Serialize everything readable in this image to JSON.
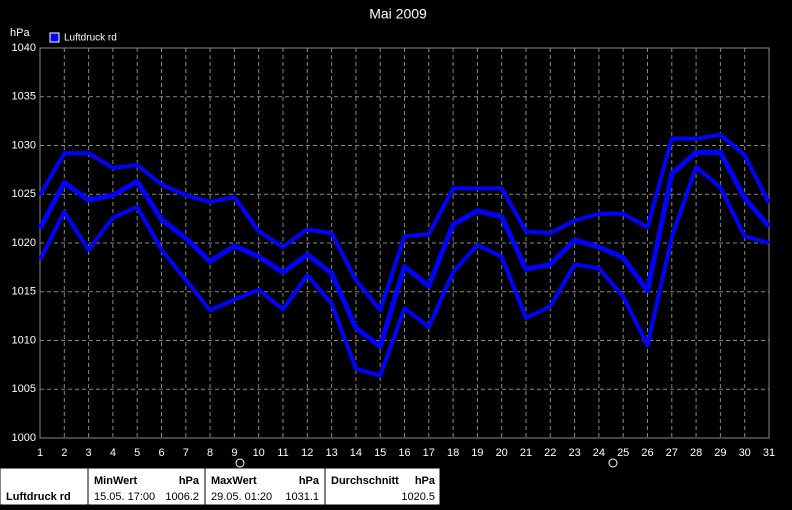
{
  "chart_data": {
    "type": "line",
    "title": "Mai 2009",
    "y_label": "hPa",
    "legend": "Luftdruck rd",
    "x": [
      1,
      2,
      3,
      4,
      5,
      6,
      7,
      8,
      9,
      10,
      11,
      12,
      13,
      14,
      15,
      16,
      17,
      18,
      19,
      20,
      21,
      22,
      23,
      24,
      25,
      26,
      27,
      28,
      29,
      30,
      31
    ],
    "xlim": [
      1,
      31
    ],
    "xticks": [
      1,
      2,
      3,
      4,
      5,
      6,
      7,
      8,
      9,
      10,
      11,
      12,
      13,
      14,
      15,
      16,
      17,
      18,
      19,
      20,
      21,
      22,
      23,
      24,
      25,
      26,
      27,
      28,
      29,
      30,
      31
    ],
    "ylim": [
      1000,
      1040
    ],
    "yticks": [
      1000,
      1005,
      1010,
      1015,
      1020,
      1025,
      1030,
      1035,
      1040
    ],
    "grid": true,
    "series": [
      {
        "color": "#0000ff",
        "values": [
          1024.9,
          1029.2,
          1029.2,
          1027.7,
          1028.0,
          1026.0,
          1024.9,
          1024.2,
          1024.7,
          1021.2,
          1019.6,
          1021.4,
          1021.0,
          1016.2,
          1013.1,
          1020.7,
          1020.9,
          1025.6,
          1025.6,
          1025.6,
          1021.2,
          1021.0,
          1022.3,
          1023.0,
          1023.0,
          1021.6,
          1030.7,
          1030.7,
          1031.1,
          1029.0,
          1024.1
        ]
      },
      {
        "color": "#0000ff",
        "values": [
          1021.5,
          1026.2,
          1024.4,
          1024.9,
          1026.3,
          1022.4,
          1020.5,
          1018.1,
          1019.7,
          1018.6,
          1017.0,
          1018.8,
          1016.9,
          1011.3,
          1009.4,
          1017.6,
          1015.6,
          1021.9,
          1023.3,
          1022.7,
          1017.3,
          1017.8,
          1020.3,
          1019.6,
          1018.5,
          1015.1,
          1027.1,
          1029.3,
          1029.3,
          1024.6,
          1021.7
        ]
      },
      {
        "color": "#0000ff",
        "values": [
          1018.3,
          1023.2,
          1019.3,
          1022.6,
          1023.7,
          1019.3,
          1016.2,
          1013.1,
          1014.2,
          1015.2,
          1013.2,
          1016.7,
          1013.8,
          1007.1,
          1006.4,
          1013.3,
          1011.4,
          1017.0,
          1019.8,
          1018.6,
          1012.3,
          1013.5,
          1017.8,
          1017.4,
          1014.5,
          1009.5,
          1020.6,
          1027.8,
          1025.7,
          1020.7,
          1020.0
        ]
      }
    ]
  },
  "stats": {
    "label": "Luftdruck rd",
    "columns": [
      {
        "header": "MinWert",
        "unit": "hPa",
        "time": "15.05. 17:00",
        "value": 1006.2
      },
      {
        "header": "MaxWert",
        "unit": "hPa",
        "time": "29.05. 01:20",
        "value": 1031.1
      },
      {
        "header": "Durchschnitt",
        "unit": "hPa",
        "value": 1020.5
      }
    ]
  }
}
